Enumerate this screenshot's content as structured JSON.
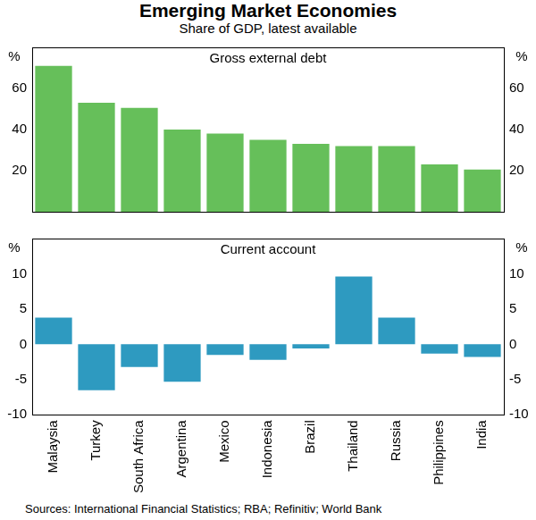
{
  "title": "Emerging Market Economies",
  "subtitle": "Share of GDP, latest available",
  "source": "Sources: International Financial Statistics; RBA; Refinitiv; World Bank",
  "chart_data": [
    {
      "type": "bar",
      "title": "Gross external debt",
      "ylabel": "%",
      "categories": [
        "Malaysia",
        "Turkey",
        "South Africa",
        "Argentina",
        "Mexico",
        "Indonesia",
        "Brazil",
        "Thailand",
        "Russia",
        "Philippines",
        "India"
      ],
      "values": [
        71,
        53,
        50.5,
        40,
        38,
        35,
        33,
        32,
        32,
        23,
        20.5
      ],
      "color": "#66bf5a",
      "ylim": [
        0,
        80
      ],
      "yticks": [
        20,
        40,
        60
      ],
      "grid": false,
      "tick_labels": "y"
    },
    {
      "type": "bar",
      "title": "Current account",
      "ylabel": "%",
      "categories": [
        "Malaysia",
        "Turkey",
        "South Africa",
        "Argentina",
        "Mexico",
        "Indonesia",
        "Brazil",
        "Thailand",
        "Russia",
        "Philippines",
        "India"
      ],
      "values": [
        3.8,
        -6.5,
        -3.2,
        -5.3,
        -1.5,
        -2.2,
        -0.6,
        9.6,
        3.8,
        -1.3,
        -1.8
      ],
      "color": "#2e9ac0",
      "ylim": [
        -10,
        15
      ],
      "yticks": [
        -10,
        -5,
        0,
        5,
        10
      ],
      "grid": false
    }
  ]
}
